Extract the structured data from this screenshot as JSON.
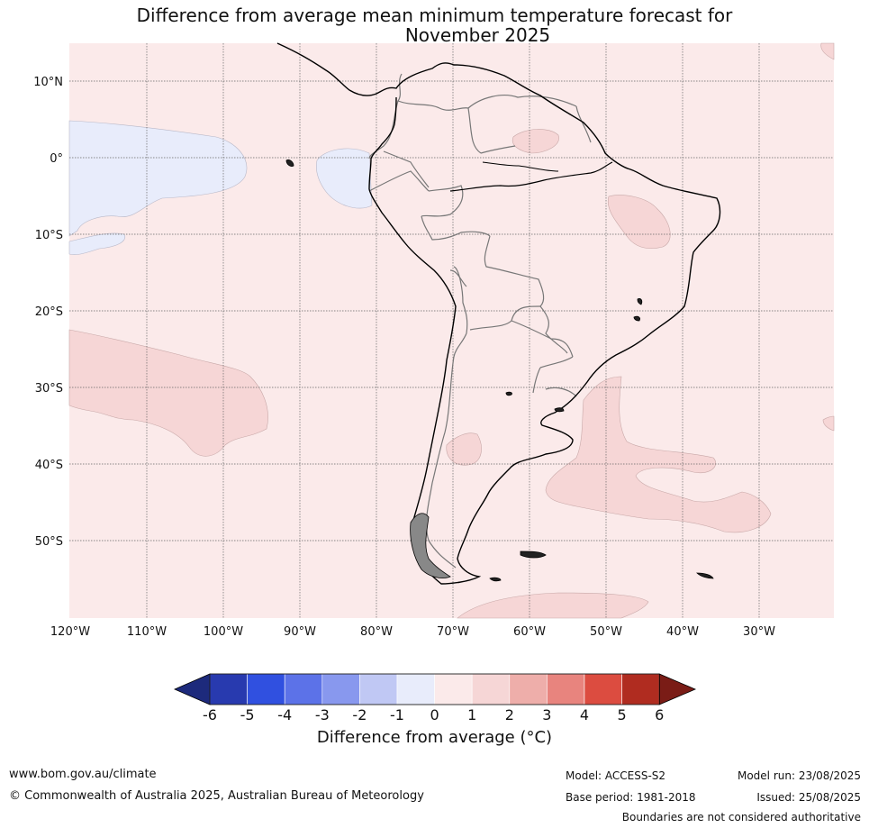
{
  "title_line1": "Difference from average mean minimum temperature forecast for",
  "title_line2": "November 2025",
  "lat_labels": [
    "10°N",
    "0°",
    "10°S",
    "20°S",
    "30°S",
    "40°S",
    "50°S"
  ],
  "lon_labels": [
    "120°W",
    "110°W",
    "100°W",
    "90°W",
    "80°W",
    "70°W",
    "60°W",
    "50°W",
    "40°W",
    "30°W"
  ],
  "colorbar": {
    "ticks": [
      "-6",
      "-5",
      "-4",
      "-3",
      "-2",
      "-1",
      "0",
      "1",
      "2",
      "3",
      "4",
      "5",
      "6"
    ],
    "colors": [
      "#283aaf",
      "#3050e0",
      "#5c72e8",
      "#8898ee",
      "#c0c8f4",
      "#e8ecfb",
      "#fbeaea",
      "#f6d6d6",
      "#eeaeaa",
      "#e8847e",
      "#dc4c40",
      "#b02c20"
    ],
    "under_color": "#1d2a7c",
    "over_color": "#7a1c16",
    "label": "Difference from average (°C)"
  },
  "map_colors": {
    "land_bg": "#fbeaea",
    "warm_1_2": "#f6d6d6",
    "cool_0_1": "#e8ecfb"
  },
  "footer": {
    "url": "www.bom.gov.au/climate",
    "copyright": "© Commonwealth of Australia 2025, Australian Bureau of Meteorology",
    "model": "Model: ACCESS-S2",
    "model_run": "Model run: 23/08/2025",
    "base_period": "Base period: 1981-2018",
    "issued": "Issued: 25/08/2025",
    "disclaimer": "Boundaries are not considered authoritative"
  }
}
